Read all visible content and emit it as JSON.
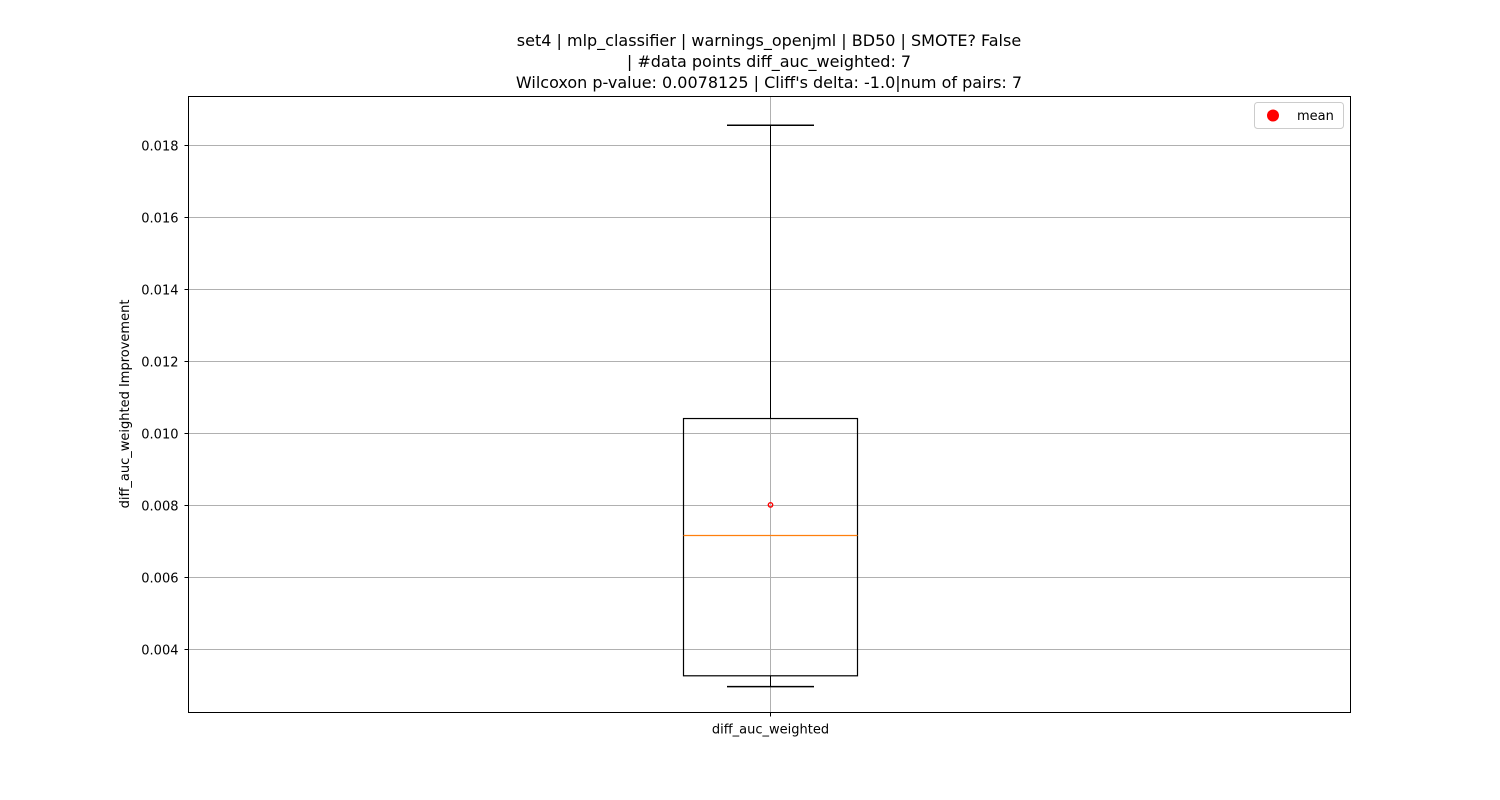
{
  "chart_data": {
    "type": "box",
    "title_lines": [
      "set4 | mlp_classifier | warnings_openjml | BD50 | SMOTE? False",
      "| #data points diff_auc_weighted: 7",
      "Wilcoxon p-value: 0.0078125 | Cliff's delta: -1.0|num of pairs: 7"
    ],
    "xlabel": "",
    "ylabel": "diff_auc_weighted Improvement",
    "categories": [
      "diff_auc_weighted"
    ],
    "ylim": [
      0.00223,
      0.01935
    ],
    "yticks": [
      0.004,
      0.006,
      0.008,
      0.01,
      0.012,
      0.014,
      0.016,
      0.018
    ],
    "ytick_labels": [
      "0.004",
      "0.006",
      "0.008",
      "0.010",
      "0.012",
      "0.014",
      "0.016",
      "0.018"
    ],
    "grid": true,
    "legend": {
      "placement": "top-right",
      "entries": [
        {
          "label": "mean",
          "color": "#ff0000"
        }
      ]
    },
    "boxes": [
      {
        "category": "diff_auc_weighted",
        "whisker_low": 0.00295,
        "q1": 0.00325,
        "median": 0.00715,
        "q3": 0.0104,
        "whisker_high": 0.01855,
        "mean": 0.008
      }
    ],
    "colors": {
      "box": "#000000",
      "median": "#ff7f0e",
      "mean": "#ff0000",
      "grid": "#b0b0b0"
    }
  }
}
